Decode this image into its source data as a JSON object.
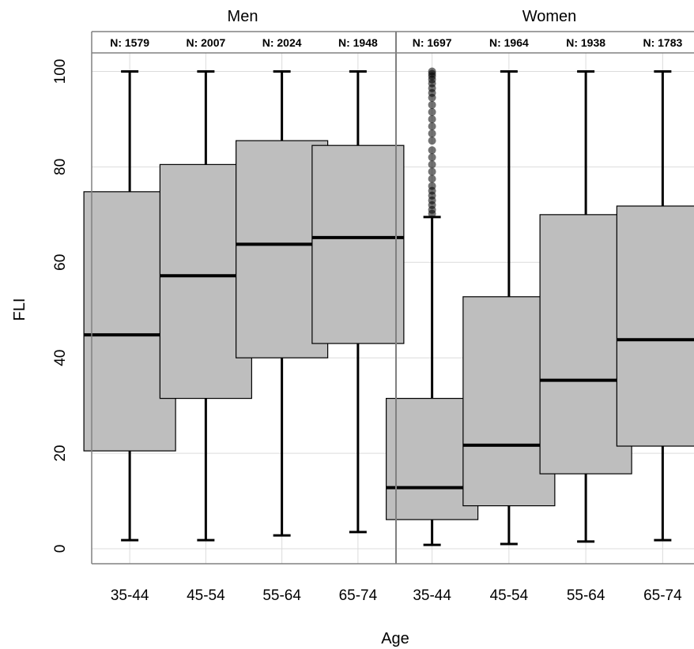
{
  "chart_data": {
    "type": "boxplot",
    "xlabel": "Age",
    "ylabel": "FLI",
    "ylim": [
      0,
      100
    ],
    "yticks": [
      0,
      20,
      40,
      60,
      80,
      100
    ],
    "grid": true,
    "colors": {
      "box_fill": "#bebebe",
      "line": "#000000",
      "grid": "#dcdcdc",
      "border": "#808080"
    },
    "facets": [
      {
        "name": "Men",
        "groups": [
          {
            "category": "35-44",
            "n_label": "N: 1579",
            "whisker_low": 1.8,
            "q1": 20.5,
            "median": 44.8,
            "q3": 74.8,
            "whisker_high": 100,
            "outliers": []
          },
          {
            "category": "45-54",
            "n_label": "N: 2007",
            "whisker_low": 1.8,
            "q1": 31.5,
            "median": 57.2,
            "q3": 80.5,
            "whisker_high": 100,
            "outliers": []
          },
          {
            "category": "55-64",
            "n_label": "N: 2024",
            "whisker_low": 2.8,
            "q1": 40.0,
            "median": 63.8,
            "q3": 85.5,
            "whisker_high": 100,
            "outliers": []
          },
          {
            "category": "65-74",
            "n_label": "N: 1948",
            "whisker_low": 3.5,
            "q1": 43.0,
            "median": 65.2,
            "q3": 84.5,
            "whisker_high": 100,
            "outliers": []
          }
        ]
      },
      {
        "name": "Women",
        "groups": [
          {
            "category": "35-44",
            "n_label": "N: 1697",
            "whisker_low": 0.8,
            "q1": 6.1,
            "median": 12.8,
            "q3": 31.5,
            "whisker_high": 69.5,
            "outliers": [
              70.2,
              71.0,
              72.0,
              73.0,
              74.0,
              75.0,
              76.0,
              77.5,
              79.0,
              80.5,
              82.0,
              83.5,
              85.5,
              87.0,
              88.5,
              90.0,
              91.5,
              93.0,
              94.5,
              95.5,
              96.5,
              97.5,
              98.3,
              99.0,
              99.5,
              100.0
            ]
          },
          {
            "category": "45-54",
            "n_label": "N: 1964",
            "whisker_low": 1.0,
            "q1": 9.0,
            "median": 21.7,
            "q3": 52.8,
            "whisker_high": 100,
            "outliers": []
          },
          {
            "category": "55-64",
            "n_label": "N: 1938",
            "whisker_low": 1.5,
            "q1": 15.7,
            "median": 35.3,
            "q3": 70.0,
            "whisker_high": 100,
            "outliers": []
          },
          {
            "category": "65-74",
            "n_label": "N: 1783",
            "whisker_low": 1.8,
            "q1": 21.5,
            "median": 43.8,
            "q3": 71.8,
            "whisker_high": 100,
            "outliers": []
          }
        ]
      }
    ]
  }
}
